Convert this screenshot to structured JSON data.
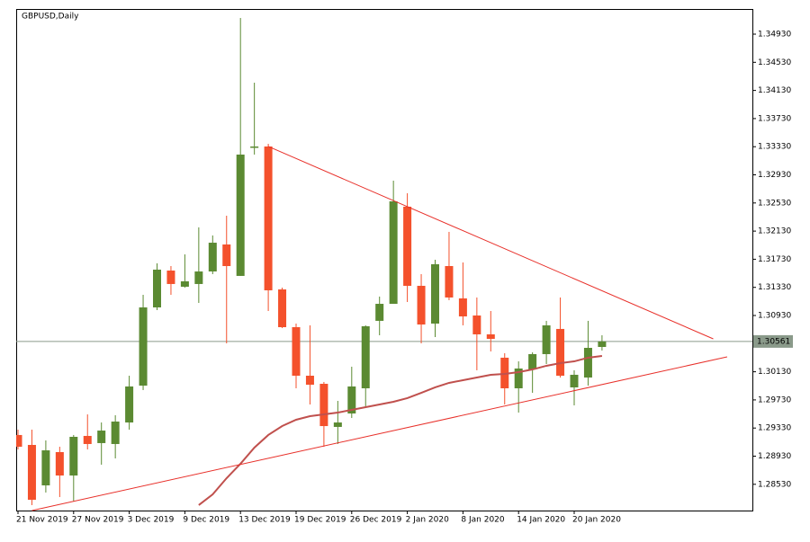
{
  "chart_data": {
    "type": "candlestick",
    "title": "GBPUSD,Daily",
    "categories": [
      "21 Nov 2019",
      null,
      null,
      null,
      "27 Nov 2019",
      null,
      null,
      null,
      "3 Dec 2019",
      null,
      null,
      null,
      "9 Dec 2019",
      null,
      null,
      null,
      "13 Dec 2019",
      null,
      null,
      null,
      "19 Dec 2019",
      null,
      null,
      null,
      "26 Dec 2019",
      null,
      null,
      null,
      "2 Jan 2020",
      null,
      null,
      null,
      "8 Jan 2020",
      null,
      null,
      null,
      "14 Jan 2020",
      null,
      null,
      null,
      "20 Jan 2020",
      null,
      null
    ],
    "open": [
      1.29231,
      1.2909,
      1.28515,
      1.28988,
      1.28655,
      1.29218,
      1.29116,
      1.29103,
      1.29409,
      1.29933,
      1.31045,
      1.31569,
      1.31339,
      1.31378,
      1.31556,
      1.3194,
      1.31493,
      1.33333,
      1.33333,
      1.31301,
      1.30764,
      1.30074,
      1.29959,
      1.29346,
      1.29537,
      1.29895,
      1.30854,
      1.31096,
      1.32477,
      1.31352,
      1.30815,
      1.31633,
      1.31173,
      1.3093,
      1.30662,
      1.3033,
      1.29895,
      1.30163,
      1.30381,
      1.30739,
      1.29908,
      1.30048,
      1.30483
    ],
    "high": [
      1.29307,
      1.29307,
      1.29154,
      1.29064,
      1.29231,
      1.29524,
      1.29409,
      1.29512,
      1.30074,
      1.31224,
      1.31672,
      1.31633,
      1.31799,
      1.32183,
      1.32068,
      1.32349,
      1.3516,
      1.3424,
      1.33371,
      1.31326,
      1.30815,
      1.3079,
      1.29985,
      1.29716,
      1.30202,
      1.3079,
      1.31199,
      1.32847,
      1.32668,
      1.31518,
      1.31723,
      1.32119,
      1.31684,
      1.31186,
      1.30994,
      1.30394,
      1.30278,
      1.30406,
      1.30854,
      1.31186,
      1.30151,
      1.30854,
      1.30649
    ],
    "low": [
      1.29026,
      1.28234,
      1.28413,
      1.28349,
      1.28285,
      1.29026,
      1.28809,
      1.28898,
      1.29307,
      1.2987,
      1.31007,
      1.31224,
      1.31326,
      1.31109,
      1.31518,
      1.30534,
      1.31493,
      1.33218,
      1.30994,
      1.30751,
      1.29895,
      1.29665,
      1.29064,
      1.29103,
      1.29473,
      1.29639,
      1.30649,
      1.31096,
      1.31122,
      1.30534,
      1.30624,
      1.31148,
      1.3079,
      1.30151,
      1.30419,
      1.29665,
      1.2955,
      1.29831,
      1.3024,
      1.30048,
      1.29652,
      1.29933,
      1.30432
    ],
    "close": [
      1.29064,
      1.2831,
      1.29013,
      1.28655,
      1.29205,
      1.29103,
      1.29294,
      1.29422,
      1.29921,
      1.31045,
      1.31582,
      1.31378,
      1.31416,
      1.31556,
      1.31965,
      1.31633,
      1.33218,
      1.33333,
      1.31288,
      1.30764,
      1.30074,
      1.29946,
      1.29358,
      1.29409,
      1.29921,
      1.30777,
      1.31096,
      1.32553,
      1.31352,
      1.30802,
      1.31659,
      1.31186,
      1.30917,
      1.30662,
      1.30598,
      1.29895,
      1.30176,
      1.30381,
      1.3079,
      1.30074,
      1.30087,
      1.3047,
      1.30561
    ],
    "up_color": "#5b8a32",
    "down_color": "#f4512c",
    "moving_average": {
      "color": "#c0504d",
      "values": [
        null,
        null,
        null,
        null,
        null,
        null,
        null,
        null,
        null,
        null,
        null,
        null,
        null,
        1.28234,
        1.28387,
        1.28617,
        1.28822,
        1.29052,
        1.29231,
        1.29358,
        1.29448,
        1.29499,
        1.29524,
        1.2955,
        1.29588,
        1.29627,
        1.29665,
        1.29703,
        1.29755,
        1.29831,
        1.29908,
        1.29972,
        1.3001,
        1.30048,
        1.30087,
        1.301,
        1.30125,
        1.30163,
        1.30215,
        1.30253,
        1.30278,
        1.3033,
        1.30355
      ]
    },
    "trendlines": [
      {
        "color": "#e8302a",
        "x": [
          18,
          50
        ],
        "y": [
          1.33333,
          1.30598
        ]
      },
      {
        "color": "#e8302a",
        "x": [
          1,
          51
        ],
        "y": [
          1.28157,
          1.30342
        ]
      }
    ],
    "current_price": 1.30561,
    "ylim": [
      1.28157,
      1.35288
    ],
    "yticks": [
      {
        "value": 1.3493,
        "label": "1.34930"
      },
      {
        "value": 1.3453,
        "label": "1.34530"
      },
      {
        "value": 1.3413,
        "label": "1.34130"
      },
      {
        "value": 1.3373,
        "label": "1.33730"
      },
      {
        "value": 1.3333,
        "label": "1.33330"
      },
      {
        "value": 1.3293,
        "label": "1.32930"
      },
      {
        "value": 1.3253,
        "label": "1.32530"
      },
      {
        "value": 1.3213,
        "label": "1.32130"
      },
      {
        "value": 1.3173,
        "label": "1.31730"
      },
      {
        "value": 1.3133,
        "label": "1.31330"
      },
      {
        "value": 1.3093,
        "label": "1.30930"
      },
      {
        "value": 1.3013,
        "label": "1.30130"
      },
      {
        "value": 1.2973,
        "label": "1.29730"
      },
      {
        "value": 1.2933,
        "label": "1.29330"
      },
      {
        "value": 1.2893,
        "label": "1.28930"
      },
      {
        "value": 1.2853,
        "label": "1.28530"
      }
    ],
    "grid": false
  }
}
